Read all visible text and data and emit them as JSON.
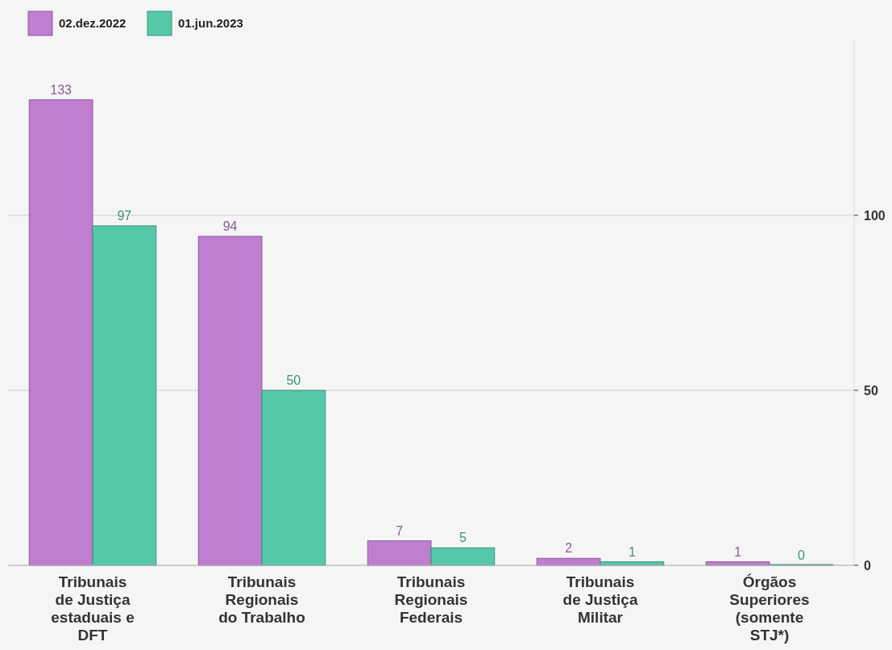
{
  "chart_data": {
    "type": "bar",
    "categories": [
      "Tribunais de Justiça estaduais e DFT",
      "Tribunais Regionais do Trabalho",
      "Tribunais Regionais Federais",
      "Tribunais de Justiça Militar",
      "Órgãos Superiores (somente STJ*)"
    ],
    "series": [
      {
        "name": "02.dez.2022",
        "color": "#c07ed0",
        "values": [
          133,
          94,
          7,
          2,
          1
        ]
      },
      {
        "name": "01.jun.2023",
        "color": "#55c8aa",
        "values": [
          97,
          50,
          5,
          1,
          0
        ]
      }
    ],
    "ylim": [
      0,
      150
    ],
    "yticks": [
      0,
      50,
      100
    ],
    "grid": "y",
    "legend": "top left",
    "data_labels": true
  }
}
